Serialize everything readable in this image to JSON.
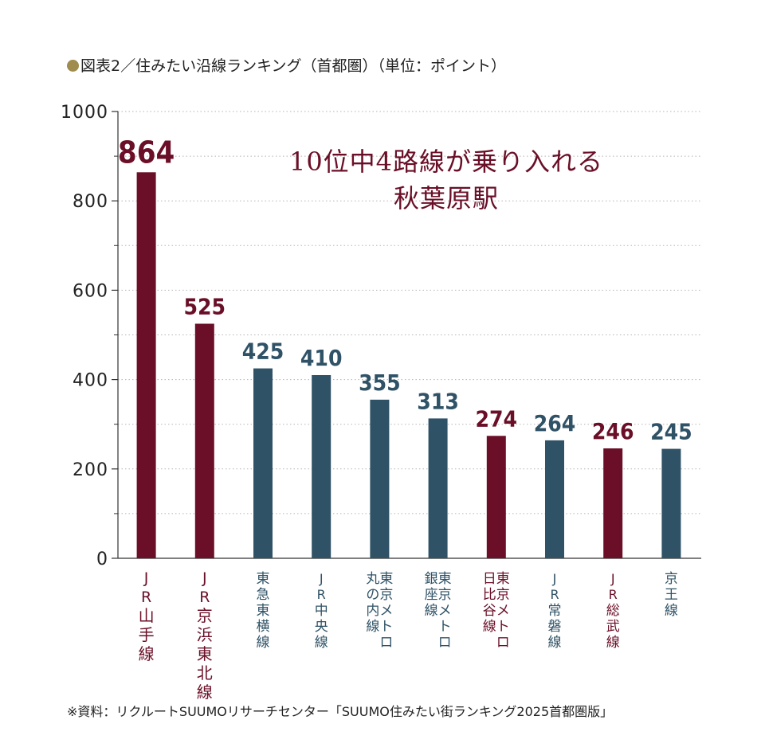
{
  "header": {
    "title": "図表2／住みたい沿線ランキング（首都圏）（単位：ポイント）"
  },
  "callout": {
    "line1": "10位中4路線が乗り入れる",
    "line2": "秋葉原駅"
  },
  "source": "※資料：リクルートSUUMOリサーチセンター「SUUMO住みたい街ランキング2025首都圏版」",
  "colors": {
    "highlight": "#6a0f27",
    "normal": "#2f5266",
    "legend_dot": "#a08c4f",
    "grid": "#b5b5b5"
  },
  "chart_data": {
    "type": "bar",
    "categories": [
      "JR山手線",
      "JR京浜東北線",
      "東急東横線",
      "JR中央線",
      "東京メトロ丸の内線",
      "東京メトロ銀座線",
      "東京メトロ日比谷線",
      "JR常磐線",
      "JR総武線",
      "京王線"
    ],
    "category_label_columns": [
      [
        "JR山手線"
      ],
      [
        "JR京浜東北線"
      ],
      [
        "東急東横線"
      ],
      [
        "JR中央線"
      ],
      [
        "東京メトロ",
        "丸の内線"
      ],
      [
        "東京メトロ",
        "銀座線"
      ],
      [
        "東京メトロ",
        "日比谷線"
      ],
      [
        "JR常磐線"
      ],
      [
        "JR総武線"
      ],
      [
        "京王線"
      ]
    ],
    "values": [
      864,
      525,
      425,
      410,
      355,
      313,
      274,
      264,
      246,
      245
    ],
    "highlight": [
      true,
      true,
      false,
      false,
      false,
      false,
      true,
      false,
      true,
      false
    ],
    "ylim": [
      0,
      1000
    ],
    "yticks": [
      0,
      200,
      400,
      600,
      800,
      1000
    ],
    "grid": true
  }
}
